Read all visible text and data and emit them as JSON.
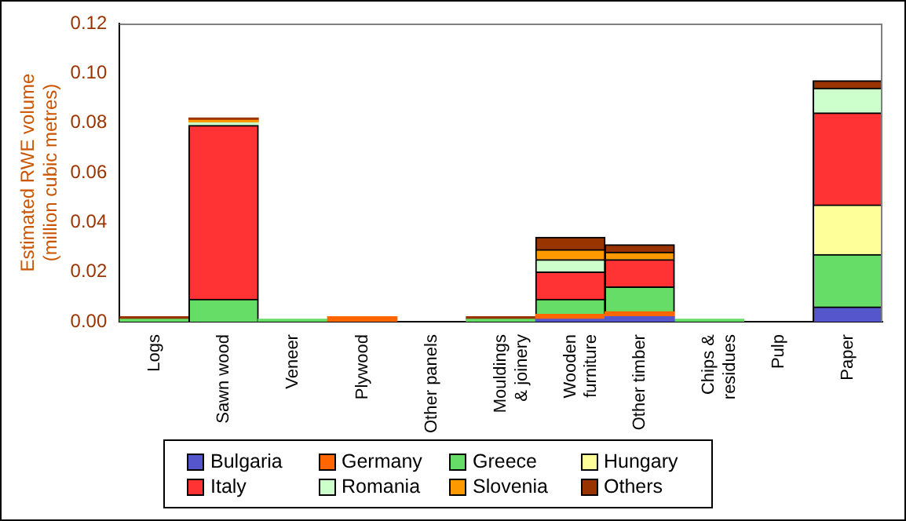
{
  "chart_data": {
    "type": "bar",
    "stacked": true,
    "ylabel": "Estimated RWE volume\n(million cubic metres)",
    "categories": [
      "Logs",
      "Sawn wood",
      "Veneer",
      "Plywood",
      "Other panels",
      "Mouldings & joinery",
      "Wooden furniture",
      "Other timber",
      "Chips & residues",
      "Pulp",
      "Paper"
    ],
    "ylim": [
      0,
      0.12
    ],
    "yticks": [
      {
        "value": 0,
        "label": "0.00"
      },
      {
        "value": 0.02,
        "label": "0.02"
      },
      {
        "value": 0.04,
        "label": "0.04"
      },
      {
        "value": 0.06,
        "label": "0.06"
      },
      {
        "value": 0.08,
        "label": "0.08"
      },
      {
        "value": 0.1,
        "label": "0.10"
      },
      {
        "value": 0.12,
        "label": "0.12"
      }
    ],
    "grid": false,
    "legend": "bottom",
    "series": [
      {
        "name": "Bulgaria",
        "color": "#5555cc",
        "values": [
          null,
          null,
          null,
          null,
          null,
          null,
          0.001,
          0.002,
          null,
          null,
          0.006
        ]
      },
      {
        "name": "Germany",
        "color": "#ff6600",
        "values": [
          null,
          null,
          null,
          0.002,
          null,
          null,
          0.002,
          0.002,
          null,
          null,
          null
        ]
      },
      {
        "name": "Greece",
        "color": "#66dd66",
        "values": [
          0.001,
          0.009,
          0.001,
          null,
          null,
          0.001,
          0.006,
          0.01,
          0.001,
          null,
          0.021
        ]
      },
      {
        "name": "Hungary",
        "color": "#ffff99",
        "values": [
          null,
          null,
          null,
          null,
          null,
          null,
          null,
          null,
          null,
          null,
          0.02
        ]
      },
      {
        "name": "Italy",
        "color": "#ff3333",
        "values": [
          null,
          0.07,
          null,
          null,
          null,
          null,
          0.011,
          0.011,
          null,
          null,
          0.037
        ]
      },
      {
        "name": "Romania",
        "color": "#ccffcc",
        "values": [
          null,
          0.001,
          null,
          null,
          null,
          null,
          0.005,
          null,
          null,
          null,
          0.01
        ]
      },
      {
        "name": "Slovenia",
        "color": "#ff9900",
        "values": [
          null,
          0.001,
          null,
          null,
          null,
          null,
          0.004,
          0.003,
          null,
          null,
          null
        ]
      },
      {
        "name": "Others",
        "color": "#993300",
        "values": [
          0.001,
          0.001,
          null,
          null,
          null,
          0.001,
          0.005,
          0.003,
          null,
          null,
          0.003
        ]
      }
    ]
  }
}
